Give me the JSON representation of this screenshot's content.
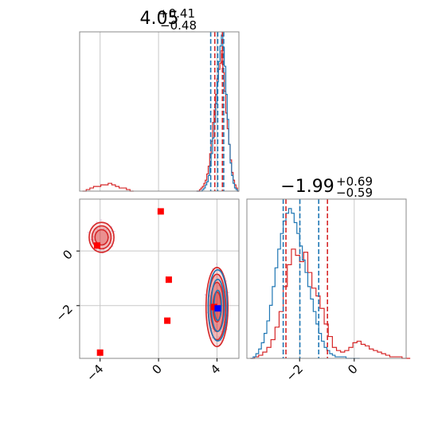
{
  "chart_data": {
    "type": "corner",
    "colors": {
      "blue": "#1f77b4",
      "red": "#d62728",
      "truth_red": "#ff0000",
      "truth_blue": "#0000ff",
      "grid": "#c8c8c8",
      "frame": "#888888"
    },
    "titles": [
      {
        "param": 1,
        "median": "4.05",
        "plus": "+0.41",
        "minus": "−0.48"
      },
      {
        "param": 2,
        "median": "−1.99",
        "plus": "+0.69",
        "minus": "−0.59"
      }
    ],
    "param1_axis": {
      "range": [
        -5.4,
        5.5
      ],
      "ticks": [
        -4,
        0,
        4
      ],
      "tick_labels": [
        "−4",
        "0",
        "4"
      ],
      "grid": [
        -4,
        0,
        4
      ]
    },
    "param2_axis": {
      "range": [
        -3.93,
        1.9
      ],
      "ticks": [
        -2,
        0
      ],
      "tick_labels": [
        "−2",
        "0"
      ],
      "grid": [
        -2,
        0
      ]
    },
    "marginal_1": {
      "blue_dashed_quantiles": [
        3.57,
        4.05,
        4.46
      ],
      "red_dashed_quantiles": [
        3.85,
        4.37
      ],
      "hist_blue": {
        "x0": 2.6,
        "bin": 0.1,
        "values": [
          0,
          0,
          0,
          0,
          0.01,
          0.02,
          0.04,
          0.06,
          0.1,
          0.16,
          0.24,
          0.34,
          0.44,
          0.56,
          0.7,
          0.83,
          0.93,
          1.0,
          0.92,
          0.8,
          0.62,
          0.46,
          0.3,
          0.18,
          0.1,
          0.05,
          0.02,
          0.01,
          0
        ]
      },
      "hist_red": {
        "x0": 2.6,
        "bin": 0.1,
        "values": [
          0,
          0,
          0.01,
          0.02,
          0.03,
          0.05,
          0.07,
          0.11,
          0.16,
          0.24,
          0.32,
          0.44,
          0.52,
          0.62,
          0.72,
          0.78,
          0.82,
          0.9,
          0.76,
          0.64,
          0.5,
          0.4,
          0.3,
          0.2,
          0.12,
          0.07,
          0.04,
          0.02,
          0
        ]
      },
      "hist_red_left": {
        "x0": -5.2,
        "bin": 0.25,
        "values": [
          0,
          0.01,
          0.02,
          0.03,
          0.03,
          0.04,
          0.04,
          0.05,
          0.04,
          0.03,
          0.02,
          0.02,
          0.01,
          0
        ]
      }
    },
    "marginal_2": {
      "blue_dashed_quantiles": [
        -2.6,
        -1.99,
        -1.3
      ],
      "red_dashed_quantiles": [
        -2.5,
        -0.98
      ],
      "hist_blue": {
        "x0": -3.8,
        "bin": 0.1,
        "values": [
          0,
          0.01,
          0.03,
          0.06,
          0.1,
          0.16,
          0.24,
          0.34,
          0.46,
          0.58,
          0.7,
          0.8,
          0.88,
          0.93,
          0.96,
          0.93,
          0.87,
          0.8,
          0.72,
          0.63,
          0.55,
          0.46,
          0.38,
          0.3,
          0.22,
          0.16,
          0.11,
          0.07,
          0.05,
          0.03,
          0.02,
          0.01,
          0.01,
          0.01,
          0.01,
          0,
          0,
          0,
          0,
          0
        ]
      },
      "hist_red": {
        "x0": -3.8,
        "bin": 0.15,
        "values": [
          0,
          0.01,
          0.02,
          0.04,
          0.07,
          0.12,
          0.2,
          0.3,
          0.46,
          0.6,
          0.7,
          0.66,
          0.62,
          0.68,
          0.55,
          0.45,
          0.4,
          0.32,
          0.22,
          0.14,
          0.07,
          0.05,
          0.04,
          0.05,
          0.07,
          0.1,
          0.11,
          0.09,
          0.08,
          0.06,
          0.05,
          0.04,
          0.03,
          0.02,
          0.01,
          0.01,
          0.01,
          0,
          0
        ]
      }
    },
    "joint": {
      "red_contours": [
        {
          "cx": 4.0,
          "cy": -2.05,
          "rx": [
            0.75,
            0.6,
            0.45,
            0.28
          ],
          "ry": [
            1.45,
            1.2,
            0.9,
            0.55
          ]
        },
        {
          "cx": -3.9,
          "cy": 0.5,
          "rx": [
            0.85,
            0.65,
            0.45
          ],
          "ry": [
            0.55,
            0.42,
            0.28
          ]
        }
      ],
      "blue_contours": [
        {
          "cx": 4.05,
          "cy": -1.99,
          "rx": [
            0.65,
            0.45,
            0.25
          ],
          "ry": [
            1.3,
            0.95,
            0.55
          ]
        }
      ],
      "truth_points_red": [
        [
          0.15,
          1.45
        ],
        [
          -4.2,
          0.2
        ],
        [
          0.7,
          -1.05
        ],
        [
          0.6,
          -2.55
        ],
        [
          -4.0,
          -3.72
        ],
        [
          3.8,
          -2.05
        ]
      ],
      "truth_point_blue": [
        4.05,
        -2.1
      ]
    }
  }
}
